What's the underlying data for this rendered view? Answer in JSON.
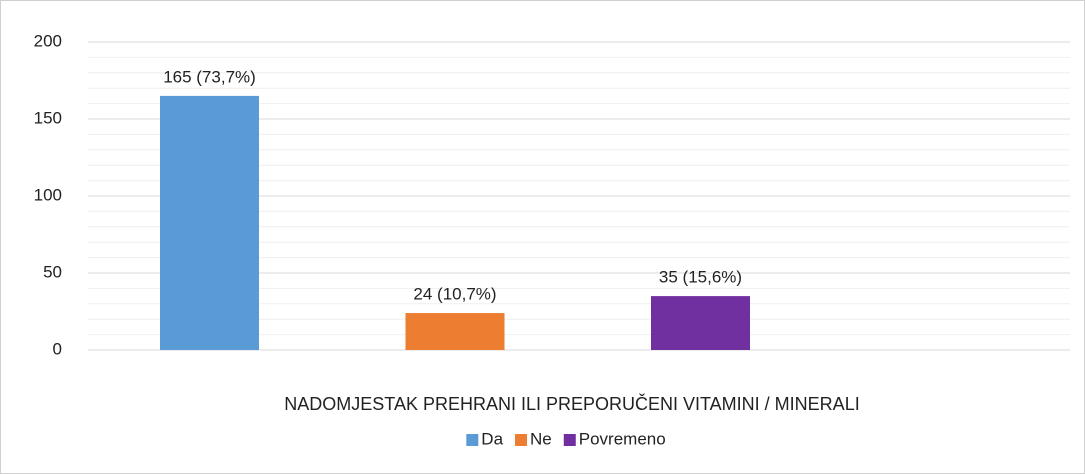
{
  "chart_data": {
    "type": "bar",
    "categories": [
      "NADOMJESTAK PREHRANI ILI PREPORUČENI VITAMINI / MINERALI"
    ],
    "series": [
      {
        "name": "Da",
        "color": "#5b9bd5",
        "values": [
          165
        ],
        "value_labels": [
          "165 (73,7%)"
        ]
      },
      {
        "name": "Ne",
        "color": "#ed7d31",
        "values": [
          24
        ],
        "value_labels": [
          "24 (10,7%)"
        ]
      },
      {
        "name": "Povremeno",
        "color": "#7030a0",
        "values": [
          35
        ],
        "value_labels": [
          "35 (15,6%)"
        ]
      }
    ],
    "ylim": [
      0,
      200
    ],
    "yticks": [
      0,
      50,
      100,
      150,
      200
    ],
    "minor_yticks": [
      10,
      20,
      30,
      40,
      60,
      70,
      80,
      90,
      110,
      120,
      130,
      140,
      160,
      170,
      180,
      190
    ],
    "grid": true,
    "legend": "bottom"
  }
}
